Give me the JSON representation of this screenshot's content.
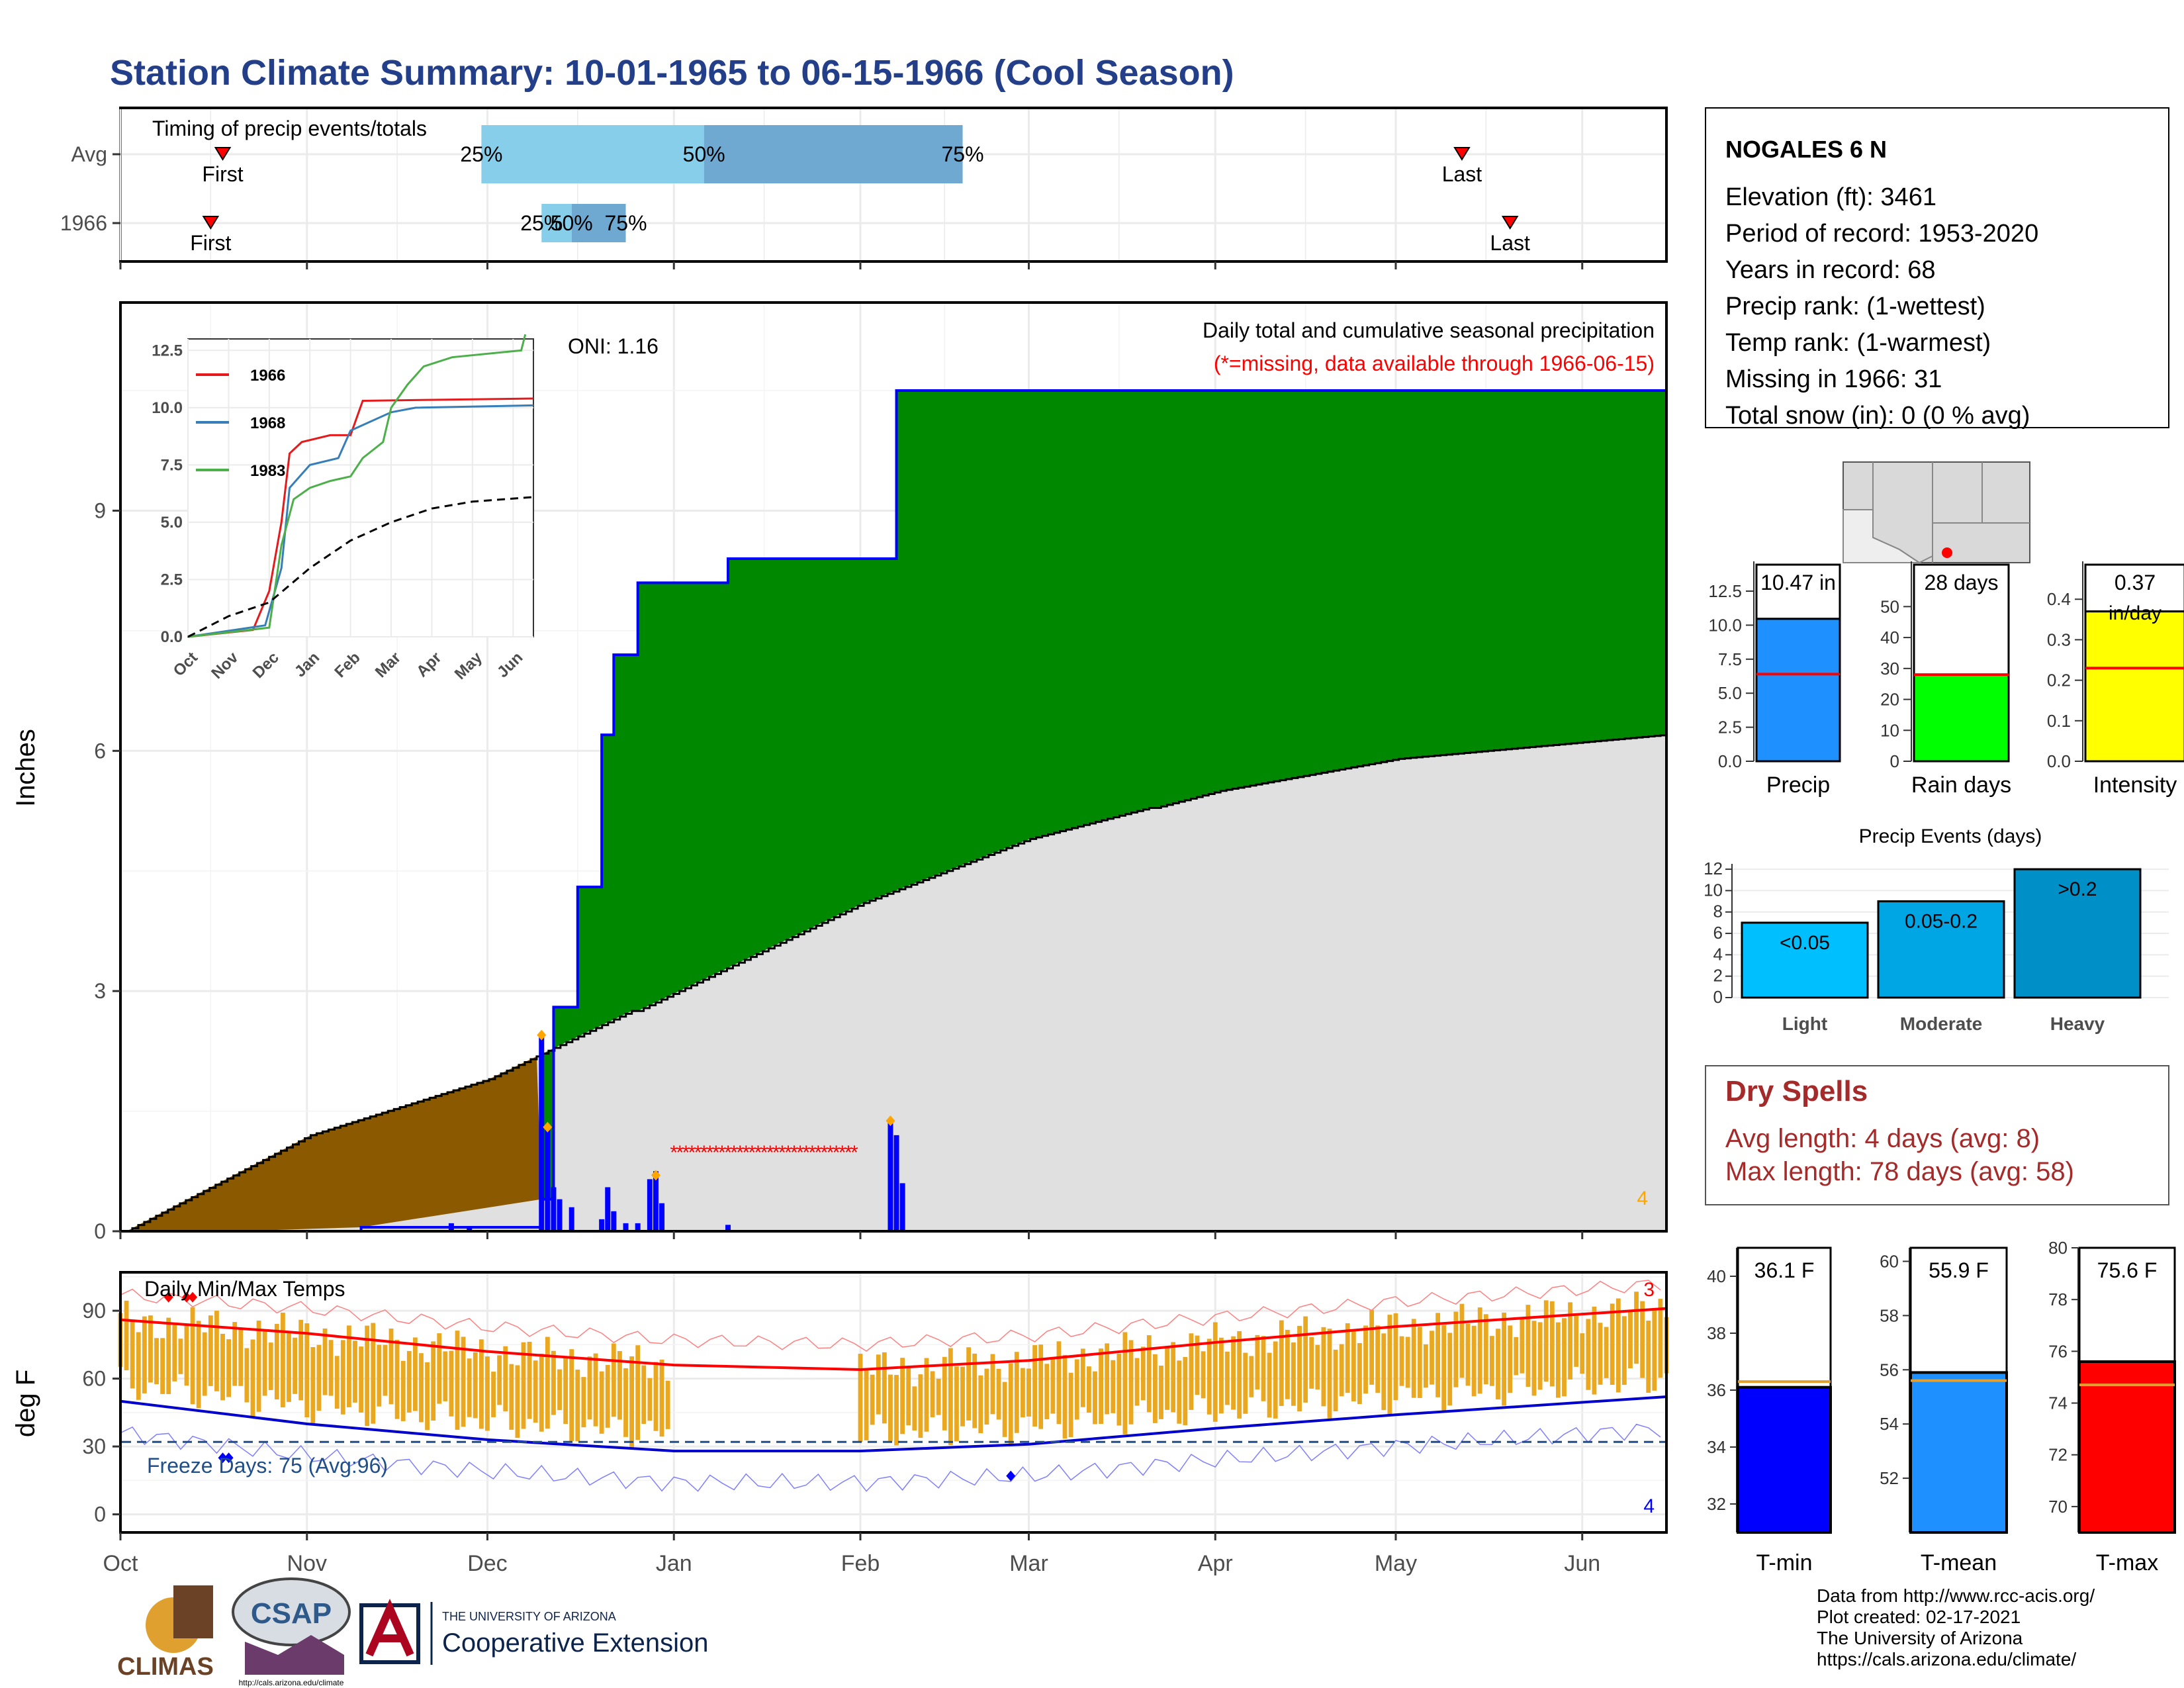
{
  "title": "Station Climate Summary: 10-01-1965 to 06-15-1966 (Cool Season)",
  "colors": {
    "title": "#243f8a",
    "precip_total": "#1e90ff",
    "rain_days": "#00ff00",
    "intensity": "#ffff00",
    "tmin": "#0000ff",
    "tmean": "#1e90ff",
    "tmax": "#ff0000",
    "dry": "#a52a2a",
    "green": "#008800",
    "brown": "#8b5a00",
    "climo": "#e0e0e0",
    "bars_temp": "#e9a81f"
  },
  "months": [
    "Oct",
    "Nov",
    "Dec",
    "Jan",
    "Feb",
    "Mar",
    "Apr",
    "May",
    "Jun"
  ],
  "timing": {
    "title": "Timing of precip events/totals",
    "rows": [
      {
        "label": "Avg",
        "first": "First",
        "last": "Last",
        "q25": "25%",
        "q50": "50%",
        "q75": "75%",
        "first_date": "1965-10-18",
        "last_date": "1966-05-12",
        "q25_date": "1965-11-30",
        "q50_date": "1966-01-06",
        "q75_date": "1966-02-18"
      },
      {
        "label": "1966",
        "first": "First",
        "last": "Last",
        "q25": "25%",
        "q50": "50%",
        "q75": "75%",
        "first_date": "1965-10-16",
        "last_date": "1966-05-20",
        "q25_date": "1965-12-10",
        "q50_date": "1965-12-15",
        "q75_date": "1965-12-24"
      }
    ]
  },
  "station": {
    "name": "NOGALES 6 N",
    "lines": [
      "Elevation (ft): 3461",
      "Period of record: 1953-2020",
      "Years in record: 68",
      "Precip rank:  (1-wettest)",
      "Temp rank:  (1-warmest)",
      "Missing in 1966: 31",
      "Total snow (in): 0 (0 % avg)"
    ]
  },
  "precip_panel": {
    "ylabel": "Inches",
    "oni": "ONI: 1.16",
    "caption1": "Daily total and cumulative seasonal precipitation",
    "caption2": "(*=missing, data available through 1966-06-15)",
    "corner_count": "4",
    "yticks": [
      0,
      3,
      6,
      9
    ],
    "ylim": [
      0,
      11.6
    ]
  },
  "inset": {
    "legend": [
      "1966",
      "1968",
      "1983"
    ],
    "legend_colors": [
      "#e41a1c",
      "#377eb8",
      "#4daf4a"
    ],
    "yticks": [
      "0.0",
      "2.5",
      "5.0",
      "7.5",
      "10.0",
      "12.5"
    ],
    "months": [
      "Oct",
      "Nov",
      "Dec",
      "Jan",
      "Feb",
      "Mar",
      "Apr",
      "May",
      "Jun"
    ]
  },
  "temp_panel": {
    "ylabel": "deg F",
    "title": "Daily Min/Max Temps",
    "freeze": "Freeze Days: 75 (Avg:96)",
    "top_count": "3",
    "bottom_count": "4",
    "yticks": [
      0,
      30,
      60,
      90
    ]
  },
  "summary_bars": [
    {
      "label": "Precip",
      "value_text": "10.47 in",
      "value": 10.47,
      "avg": 6.4,
      "max": 12.5,
      "ticks": [
        "0.0",
        "2.5",
        "5.0",
        "7.5",
        "10.0",
        "12.5"
      ]
    },
    {
      "label": "Rain days",
      "value_text": "28 days",
      "value": 28,
      "avg": 28,
      "max": 55,
      "ticks": [
        "0",
        "10",
        "20",
        "30",
        "40",
        "50"
      ]
    },
    {
      "label": "Intensity",
      "value_text": "0.37",
      "value_text2": "in/day",
      "value": 0.37,
      "avg": 0.23,
      "max": 0.42,
      "ticks": [
        "0.0",
        "0.1",
        "0.2",
        "0.3",
        "0.4"
      ]
    }
  ],
  "events": {
    "title": "Precip Events (days)",
    "categories": [
      "Light",
      "Moderate",
      "Heavy"
    ],
    "bar_labels": [
      "<0.05",
      "0.05-0.2",
      ">0.2"
    ],
    "values": [
      7,
      9,
      12
    ],
    "colors": [
      "#00bfff",
      "#00a5e3",
      "#0090c8"
    ],
    "yticks": [
      "0",
      "2",
      "4",
      "6",
      "8",
      "10",
      "12"
    ]
  },
  "dry": {
    "title": "Dry Spells",
    "avg": "Avg length: 4 days (avg: 8)",
    "max": "Max length: 78 days (avg: 58)"
  },
  "temp_bars": [
    {
      "label": "T-min",
      "value_text": "36.1 F",
      "value": 36.1,
      "avg": 36.3,
      "min": 31,
      "max": 41,
      "ticks": [
        "32",
        "34",
        "36",
        "38",
        "40"
      ]
    },
    {
      "label": "T-mean",
      "value_text": "55.9 F",
      "value": 55.9,
      "avg": 55.6,
      "min": 50,
      "max": 60.5,
      "ticks": [
        "52",
        "54",
        "56",
        "58",
        "60"
      ]
    },
    {
      "label": "T-max",
      "value_text": "75.6 F",
      "value": 75.6,
      "avg": 74.7,
      "min": 69,
      "max": 80,
      "ticks": [
        "70",
        "72",
        "74",
        "76",
        "78",
        "80"
      ]
    }
  ],
  "footer": {
    "lines": [
      "Data from http://www.rcc-acis.org/",
      "Plot created: 02-17-2021",
      "The University of Arizona",
      "https://cals.arizona.edu/climate/"
    ],
    "logo1": "CLIMAS",
    "logo2": "CSAP",
    "logo2_url": "http://cals.arizona.edu/climate",
    "ua_line1": "THE UNIVERSITY OF ARIZONA",
    "ua_line2": "Cooperative Extension"
  },
  "chart_data": [
    {
      "type": "area",
      "title": "Daily total and cumulative seasonal precipitation",
      "ylabel": "Inches",
      "ylim": [
        0,
        11.6
      ],
      "series": [
        {
          "name": "1966",
          "x": [
            "1965-10-01",
            "1965-10-20",
            "1965-11-10",
            "1965-12-10",
            "1965-12-12",
            "1965-12-16",
            "1965-12-20",
            "1965-12-22",
            "1965-12-26",
            "1966-01-10",
            "1966-02-06",
            "1966-02-07",
            "1966-06-15"
          ],
          "values": [
            0.0,
            0.0,
            0.05,
            0.4,
            2.8,
            4.3,
            6.2,
            7.2,
            8.1,
            8.4,
            8.4,
            10.5,
            10.6
          ]
        },
        {
          "x": [
            "1965-10-01",
            "1965-11-01",
            "1965-12-01",
            "1966-01-01",
            "1966-02-01",
            "1966-03-01",
            "1966-04-01",
            "1966-05-01",
            "1966-06-15"
          ],
          "values": [
            0.0,
            1.2,
            1.9,
            3.0,
            4.1,
            4.9,
            5.5,
            5.9,
            6.2
          ]
        }
      ]
    },
    {
      "type": "bar",
      "title": "Daily Min/Max Temps",
      "ylabel": "deg F",
      "ylim": [
        -5,
        105
      ],
      "series": [
        {
          "x": [
            "1965-10-01",
            "1965-11-01",
            "1965-12-01",
            "1966-01-01",
            "1966-02-01",
            "1966-03-01",
            "1966-04-01",
            "1966-05-01",
            "1966-06-15"
          ],
          "values": [
            86,
            80,
            72,
            66,
            64,
            68,
            76,
            83,
            91
          ]
        },
        {
          "x": [
            "1965-10-01",
            "1965-11-01",
            "1965-12-01",
            "1966-01-01",
            "1966-02-01",
            "1966-03-01",
            "1966-04-01",
            "1966-05-01",
            "1966-06-15"
          ],
          "values": [
            50,
            40,
            33,
            28,
            28,
            31,
            38,
            44,
            52
          ]
        }
      ]
    },
    {
      "type": "bar",
      "title": "Precip Events (days)",
      "categories": [
        "Light",
        "Moderate",
        "Heavy"
      ],
      "values": [
        7,
        9,
        12
      ],
      "ylim": [
        0,
        12.5
      ]
    }
  ]
}
